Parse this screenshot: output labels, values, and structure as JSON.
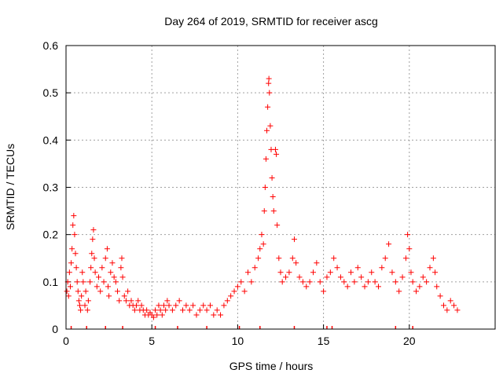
{
  "chart_data": {
    "type": "scatter",
    "title": "Day 264 of 2019, SRMTID for receiver ascg",
    "xlabel": "GPS time / hours",
    "ylabel": "SRMTID / TECUs",
    "xlim": [
      0,
      25
    ],
    "ylim": [
      0,
      0.6
    ],
    "xticks": [
      0,
      5,
      10,
      15,
      20
    ],
    "yticks": [
      0,
      0.1,
      0.2,
      0.3,
      0.4,
      0.5,
      0.6
    ],
    "grid": true,
    "legend": "none",
    "colors": {
      "points": "#ff0000",
      "grid": "#a0a0a0",
      "frame": "#000000"
    },
    "marker": "plus",
    "series": [
      {
        "name": "SRMTID",
        "points": [
          [
            0.05,
            0.08
          ],
          [
            0.1,
            0.1
          ],
          [
            0.15,
            0.07
          ],
          [
            0.2,
            0.12
          ],
          [
            0.25,
            0.09
          ],
          [
            0.3,
            0.14
          ],
          [
            0.35,
            0.17
          ],
          [
            0.4,
            0.22
          ],
          [
            0.45,
            0.24
          ],
          [
            0.5,
            0.2
          ],
          [
            0.55,
            0.16
          ],
          [
            0.6,
            0.13
          ],
          [
            0.65,
            0.1
          ],
          [
            0.7,
            0.08
          ],
          [
            0.75,
            0.06
          ],
          [
            0.8,
            0.05
          ],
          [
            0.85,
            0.04
          ],
          [
            0.9,
            0.07
          ],
          [
            0.95,
            0.12
          ],
          [
            1.0,
            0.1
          ],
          [
            1.1,
            0.05
          ],
          [
            1.15,
            0.08
          ],
          [
            1.25,
            0.04
          ],
          [
            1.3,
            0.06
          ],
          [
            1.4,
            0.1
          ],
          [
            1.45,
            0.13
          ],
          [
            1.5,
            0.16
          ],
          [
            1.55,
            0.19
          ],
          [
            1.6,
            0.21
          ],
          [
            1.65,
            0.15
          ],
          [
            1.7,
            0.12
          ],
          [
            1.8,
            0.09
          ],
          [
            1.9,
            0.11
          ],
          [
            2.0,
            0.08
          ],
          [
            2.1,
            0.13
          ],
          [
            2.2,
            0.1
          ],
          [
            2.3,
            0.15
          ],
          [
            2.4,
            0.17
          ],
          [
            2.45,
            0.09
          ],
          [
            2.5,
            0.07
          ],
          [
            2.6,
            0.12
          ],
          [
            2.7,
            0.14
          ],
          [
            2.8,
            0.11
          ],
          [
            2.9,
            0.1
          ],
          [
            3.0,
            0.08
          ],
          [
            3.1,
            0.06
          ],
          [
            3.2,
            0.13
          ],
          [
            3.25,
            0.15
          ],
          [
            3.3,
            0.11
          ],
          [
            3.4,
            0.07
          ],
          [
            3.5,
            0.06
          ],
          [
            3.6,
            0.08
          ],
          [
            3.7,
            0.05
          ],
          [
            3.8,
            0.06
          ],
          [
            3.9,
            0.05
          ],
          [
            4.0,
            0.04
          ],
          [
            4.1,
            0.05
          ],
          [
            4.2,
            0.06
          ],
          [
            4.3,
            0.04
          ],
          [
            4.4,
            0.05
          ],
          [
            4.5,
            0.04
          ],
          [
            4.6,
            0.03
          ],
          [
            4.7,
            0.04
          ],
          [
            4.8,
            0.03
          ],
          [
            4.9,
            0.035
          ],
          [
            5.0,
            0.03
          ],
          [
            5.1,
            0.025
          ],
          [
            5.2,
            0.04
          ],
          [
            5.3,
            0.03
          ],
          [
            5.4,
            0.05
          ],
          [
            5.5,
            0.04
          ],
          [
            5.6,
            0.03
          ],
          [
            5.7,
            0.05
          ],
          [
            5.8,
            0.04
          ],
          [
            5.9,
            0.06
          ],
          [
            6.0,
            0.05
          ],
          [
            6.2,
            0.04
          ],
          [
            6.4,
            0.05
          ],
          [
            6.6,
            0.06
          ],
          [
            6.8,
            0.04
          ],
          [
            7.0,
            0.05
          ],
          [
            7.2,
            0.04
          ],
          [
            7.4,
            0.05
          ],
          [
            7.6,
            0.03
          ],
          [
            7.8,
            0.04
          ],
          [
            8.0,
            0.05
          ],
          [
            8.2,
            0.04
          ],
          [
            8.4,
            0.05
          ],
          [
            8.6,
            0.03
          ],
          [
            8.8,
            0.04
          ],
          [
            9.0,
            0.03
          ],
          [
            9.2,
            0.05
          ],
          [
            9.4,
            0.06
          ],
          [
            9.6,
            0.07
          ],
          [
            9.8,
            0.08
          ],
          [
            10.0,
            0.09
          ],
          [
            10.2,
            0.1
          ],
          [
            10.4,
            0.08
          ],
          [
            10.6,
            0.12
          ],
          [
            10.8,
            0.1
          ],
          [
            11.0,
            0.13
          ],
          [
            11.2,
            0.15
          ],
          [
            11.3,
            0.17
          ],
          [
            11.4,
            0.2
          ],
          [
            11.5,
            0.18
          ],
          [
            11.55,
            0.25
          ],
          [
            11.6,
            0.3
          ],
          [
            11.65,
            0.36
          ],
          [
            11.7,
            0.42
          ],
          [
            11.75,
            0.47
          ],
          [
            11.8,
            0.52
          ],
          [
            11.82,
            0.53
          ],
          [
            11.85,
            0.5
          ],
          [
            11.9,
            0.43
          ],
          [
            11.95,
            0.38
          ],
          [
            12.0,
            0.32
          ],
          [
            12.05,
            0.28
          ],
          [
            12.1,
            0.25
          ],
          [
            12.2,
            0.38
          ],
          [
            12.25,
            0.37
          ],
          [
            12.3,
            0.22
          ],
          [
            12.4,
            0.15
          ],
          [
            12.5,
            0.12
          ],
          [
            12.6,
            0.1
          ],
          [
            12.8,
            0.11
          ],
          [
            13.0,
            0.12
          ],
          [
            13.2,
            0.15
          ],
          [
            13.3,
            0.19
          ],
          [
            13.4,
            0.14
          ],
          [
            13.6,
            0.11
          ],
          [
            13.8,
            0.1
          ],
          [
            14.0,
            0.09
          ],
          [
            14.2,
            0.1
          ],
          [
            14.4,
            0.12
          ],
          [
            14.6,
            0.14
          ],
          [
            14.8,
            0.1
          ],
          [
            15.0,
            0.08
          ],
          [
            15.2,
            0.11
          ],
          [
            15.4,
            0.12
          ],
          [
            15.6,
            0.15
          ],
          [
            15.8,
            0.13
          ],
          [
            16.0,
            0.11
          ],
          [
            16.2,
            0.1
          ],
          [
            16.4,
            0.09
          ],
          [
            16.6,
            0.12
          ],
          [
            16.8,
            0.1
          ],
          [
            17.0,
            0.13
          ],
          [
            17.2,
            0.11
          ],
          [
            17.4,
            0.09
          ],
          [
            17.6,
            0.1
          ],
          [
            17.8,
            0.12
          ],
          [
            18.0,
            0.1
          ],
          [
            18.2,
            0.09
          ],
          [
            18.4,
            0.13
          ],
          [
            18.6,
            0.15
          ],
          [
            18.8,
            0.18
          ],
          [
            19.0,
            0.12
          ],
          [
            19.2,
            0.1
          ],
          [
            19.4,
            0.08
          ],
          [
            19.6,
            0.11
          ],
          [
            19.8,
            0.15
          ],
          [
            19.9,
            0.2
          ],
          [
            20.0,
            0.17
          ],
          [
            20.1,
            0.12
          ],
          [
            20.2,
            0.1
          ],
          [
            20.4,
            0.08
          ],
          [
            20.6,
            0.09
          ],
          [
            20.8,
            0.11
          ],
          [
            21.0,
            0.1
          ],
          [
            21.2,
            0.13
          ],
          [
            21.4,
            0.15
          ],
          [
            21.5,
            0.12
          ],
          [
            21.6,
            0.09
          ],
          [
            21.8,
            0.07
          ],
          [
            22.0,
            0.05
          ],
          [
            22.2,
            0.04
          ],
          [
            22.4,
            0.06
          ],
          [
            22.6,
            0.05
          ],
          [
            22.8,
            0.04
          ]
        ]
      }
    ],
    "zero_markers": [
      0.3,
      1.2,
      2.3,
      3.3,
      5.2,
      6.5,
      8.2,
      10.1,
      11.3,
      13.3,
      15.2,
      15.5,
      19.2,
      20.2
    ]
  }
}
